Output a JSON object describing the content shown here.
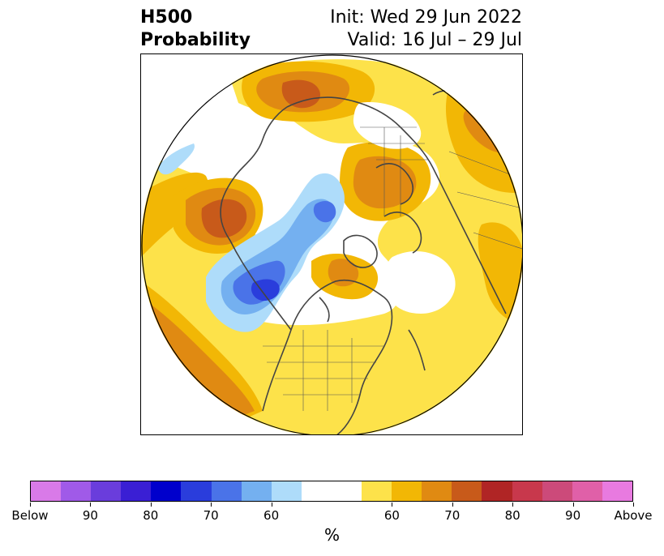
{
  "title": {
    "left_line1": "H500",
    "left_line2": "Probability",
    "right_line1": "Init: Wed 29 Jun 2022",
    "right_line2": "Valid: 16 Jul – 29 Jul"
  },
  "colorbar": {
    "colors": [
      "#d97ae8",
      "#a05ae8",
      "#6a3ddc",
      "#3a1fd4",
      "#0000cc",
      "#2a3ddc",
      "#4a73e8",
      "#74b0f0",
      "#aedcfa",
      "#ffffff",
      "#ffffff",
      "#fde24a",
      "#f2b705",
      "#e08a12",
      "#c85a1a",
      "#b02525",
      "#c8384c",
      "#cc4a7a",
      "#e060a8",
      "#e87ae0"
    ],
    "ticks": [
      {
        "label": "Below"
      },
      {
        "label": "90"
      },
      {
        "label": "80"
      },
      {
        "label": "70"
      },
      {
        "label": "60"
      },
      {
        "label": "60"
      },
      {
        "label": "70"
      },
      {
        "label": "80"
      },
      {
        "label": "90"
      },
      {
        "label": "Above"
      }
    ],
    "unit_label": "%"
  },
  "map": {
    "projection": "north-polar-stereographic",
    "field": "500 hPa height probability",
    "palette": {
      "above_60": "#fde24a",
      "above_70": "#f2b705",
      "above_80": "#e08a12",
      "above_90": "#c85a1a",
      "below_60": "#aedcfa",
      "below_70": "#74b0f0",
      "below_80": "#4a73e8",
      "below_90": "#2a3ddc",
      "coastline": "#444444"
    }
  }
}
